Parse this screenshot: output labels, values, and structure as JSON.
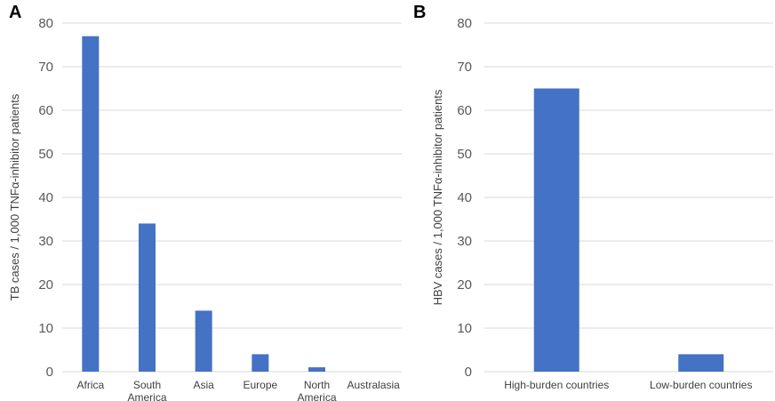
{
  "chart_data": [
    {
      "type": "bar",
      "panel_label": "A",
      "title": "",
      "xlabel": "",
      "ylabel": "TB cases / 1,000 TNFα-inhibitor patients",
      "categories": [
        [
          "Africa"
        ],
        [
          "South",
          "America"
        ],
        [
          "Asia"
        ],
        [
          "Europe"
        ],
        [
          "North",
          "America"
        ],
        [
          "Australasia"
        ]
      ],
      "values": [
        77,
        34,
        14,
        4,
        1,
        0
      ],
      "ylim": [
        0,
        80
      ],
      "yticks": [
        0,
        10,
        20,
        30,
        40,
        50,
        60,
        70,
        80
      ],
      "grid": true,
      "color": "#4472C4"
    },
    {
      "type": "bar",
      "panel_label": "B",
      "title": "",
      "xlabel": "",
      "ylabel": "HBV cases / 1,000 TNFα-inhibitor patients",
      "categories": [
        [
          "High-burden countries"
        ],
        [
          "Low-burden countries"
        ]
      ],
      "values": [
        65,
        4
      ],
      "ylim": [
        0,
        80
      ],
      "yticks": [
        0,
        10,
        20,
        30,
        40,
        50,
        60,
        70,
        80
      ],
      "grid": true,
      "color": "#4472C4"
    }
  ]
}
